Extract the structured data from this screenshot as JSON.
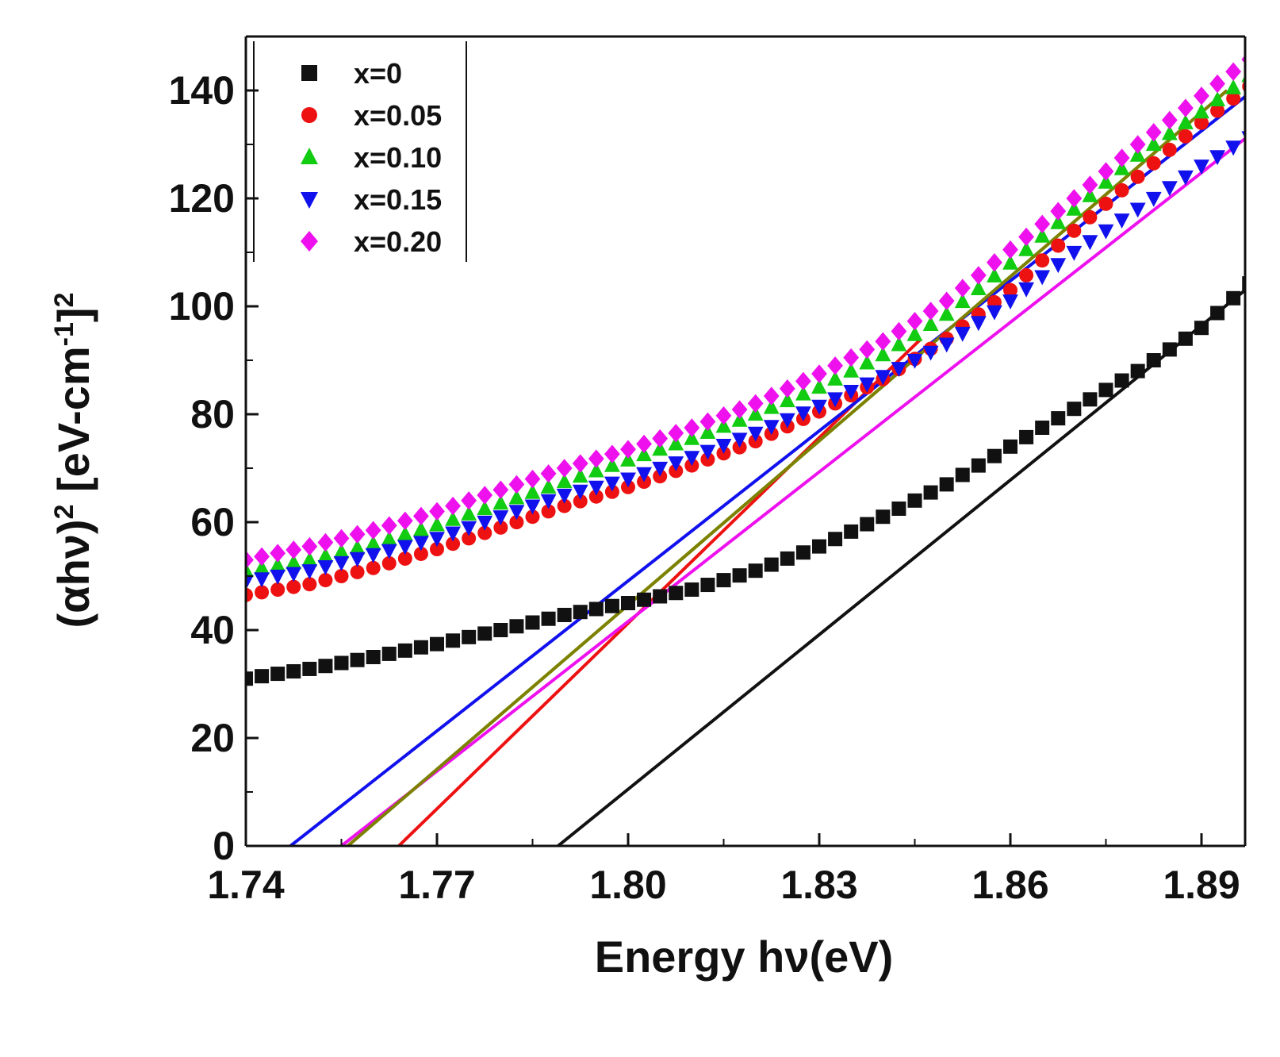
{
  "chart_data": {
    "type": "scatter",
    "xlabel": "Energy hν(eV)",
    "ylabel_parts": {
      "prefix": "(αhν)",
      "exp1": "2",
      "middle": " [eV-cm",
      "exp2": "-1",
      "suffix": "]",
      "exp3": "2"
    },
    "xlim": [
      1.74,
      1.9
    ],
    "ylim": [
      0,
      150
    ],
    "xticks": [
      1.74,
      1.77,
      1.8,
      1.83,
      1.86,
      1.89
    ],
    "xtick_labels": [
      "1.74",
      "1.77",
      "1.80",
      "1.83",
      "1.86",
      "1.89"
    ],
    "yticks": [
      0,
      20,
      40,
      60,
      80,
      100,
      120,
      140
    ],
    "ytick_labels": [
      "0",
      "20",
      "40",
      "60",
      "80",
      "100",
      "120",
      "140"
    ],
    "legend_position": "top-left",
    "grid": false,
    "series": [
      {
        "name": "x=0",
        "color": "#111111",
        "marker": "square",
        "points": [
          [
            1.74,
            31.0
          ],
          [
            1.75,
            32.8
          ],
          [
            1.76,
            35.0
          ],
          [
            1.77,
            37.4
          ],
          [
            1.78,
            40.0
          ],
          [
            1.79,
            42.8
          ],
          [
            1.8,
            45.0
          ],
          [
            1.81,
            47.5
          ],
          [
            1.82,
            51.0
          ],
          [
            1.83,
            55.5
          ],
          [
            1.84,
            61.0
          ],
          [
            1.85,
            67.0
          ],
          [
            1.86,
            74.0
          ],
          [
            1.87,
            81.0
          ],
          [
            1.88,
            88.0
          ],
          [
            1.89,
            96.0
          ],
          [
            1.9,
            107.0
          ]
        ],
        "fit": [
          [
            1.789,
            0
          ],
          [
            1.9,
            106.0
          ]
        ]
      },
      {
        "name": "x=0.05",
        "color": "#ee1111",
        "marker": "circle",
        "points": [
          [
            1.74,
            46.5
          ],
          [
            1.75,
            48.5
          ],
          [
            1.76,
            51.5
          ],
          [
            1.77,
            55.0
          ],
          [
            1.78,
            59.0
          ],
          [
            1.79,
            63.0
          ],
          [
            1.8,
            66.5
          ],
          [
            1.81,
            70.5
          ],
          [
            1.82,
            75.0
          ],
          [
            1.83,
            80.5
          ],
          [
            1.84,
            86.5
          ],
          [
            1.85,
            94.0
          ],
          [
            1.86,
            103.0
          ],
          [
            1.87,
            114.0
          ],
          [
            1.88,
            124.0
          ],
          [
            1.89,
            134.0
          ],
          [
            1.9,
            143.0
          ]
        ],
        "fit": [
          [
            1.764,
            0
          ],
          [
            1.846,
            94.0
          ]
        ]
      },
      {
        "name": "x=0.10",
        "color": "#11cc11",
        "marker": "triangle-up",
        "points": [
          [
            1.74,
            51.0
          ],
          [
            1.75,
            53.0
          ],
          [
            1.76,
            56.0
          ],
          [
            1.77,
            59.5
          ],
          [
            1.78,
            63.5
          ],
          [
            1.79,
            67.5
          ],
          [
            1.8,
            71.5
          ],
          [
            1.81,
            75.5
          ],
          [
            1.82,
            80.0
          ],
          [
            1.83,
            85.0
          ],
          [
            1.84,
            91.0
          ],
          [
            1.85,
            98.5
          ],
          [
            1.86,
            108.0
          ],
          [
            1.87,
            118.0
          ],
          [
            1.88,
            128.0
          ],
          [
            1.89,
            136.0
          ],
          [
            1.9,
            145.0
          ]
        ],
        "fit": [
          [
            1.756,
            0
          ],
          [
            1.894,
            140.0
          ]
        ]
      },
      {
        "name": "x=0.15",
        "color": "#1111ee",
        "marker": "triangle-down",
        "points": [
          [
            1.74,
            49.0
          ],
          [
            1.75,
            51.0
          ],
          [
            1.76,
            54.0
          ],
          [
            1.77,
            57.0
          ],
          [
            1.78,
            61.0
          ],
          [
            1.79,
            65.0
          ],
          [
            1.8,
            68.0
          ],
          [
            1.81,
            72.0
          ],
          [
            1.82,
            76.5
          ],
          [
            1.83,
            81.5
          ],
          [
            1.84,
            87.0
          ],
          [
            1.85,
            93.0
          ],
          [
            1.86,
            101.0
          ],
          [
            1.87,
            110.0
          ],
          [
            1.88,
            118.0
          ],
          [
            1.89,
            126.0
          ],
          [
            1.9,
            133.0
          ]
        ],
        "fit": [
          [
            1.747,
            0
          ],
          [
            1.897,
            139.0
          ]
        ]
      },
      {
        "name": "x=0.20",
        "color": "#ee11ee",
        "marker": "diamond",
        "points": [
          [
            1.74,
            53.0
          ],
          [
            1.75,
            55.5
          ],
          [
            1.76,
            58.5
          ],
          [
            1.77,
            62.0
          ],
          [
            1.78,
            66.0
          ],
          [
            1.79,
            70.0
          ],
          [
            1.8,
            73.5
          ],
          [
            1.81,
            77.5
          ],
          [
            1.82,
            82.0
          ],
          [
            1.83,
            87.5
          ],
          [
            1.84,
            93.5
          ],
          [
            1.85,
            101.0
          ],
          [
            1.86,
            110.5
          ],
          [
            1.87,
            120.0
          ],
          [
            1.88,
            130.0
          ],
          [
            1.89,
            139.0
          ],
          [
            1.9,
            148.0
          ]
        ],
        "fit": [
          [
            1.755,
            0
          ],
          [
            1.9,
            134.0
          ]
        ]
      }
    ],
    "extra_fit": {
      "color": "#808000",
      "points": [
        [
          1.756,
          0
        ],
        [
          1.894,
          140.0
        ]
      ]
    }
  }
}
